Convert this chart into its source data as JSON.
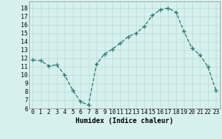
{
  "x": [
    0,
    1,
    2,
    3,
    4,
    5,
    6,
    7,
    8,
    9,
    10,
    11,
    12,
    13,
    14,
    15,
    16,
    17,
    18,
    19,
    20,
    21,
    22,
    23
  ],
  "y": [
    11.8,
    11.7,
    11.1,
    11.2,
    10.0,
    8.2,
    6.8,
    6.4,
    11.3,
    12.5,
    13.1,
    13.8,
    14.6,
    15.0,
    15.8,
    17.1,
    17.8,
    18.0,
    17.5,
    15.2,
    13.2,
    12.4,
    11.0,
    8.2
  ],
  "xlabel": "Humidex (Indice chaleur)",
  "xlim": [
    -0.5,
    23.5
  ],
  "ylim": [
    6,
    18.8
  ],
  "yticks": [
    6,
    7,
    8,
    9,
    10,
    11,
    12,
    13,
    14,
    15,
    16,
    17,
    18
  ],
  "xticks": [
    0,
    1,
    2,
    3,
    4,
    5,
    6,
    7,
    8,
    9,
    10,
    11,
    12,
    13,
    14,
    15,
    16,
    17,
    18,
    19,
    20,
    21,
    22,
    23
  ],
  "line_color": "#2e7d6e",
  "marker": "+",
  "marker_size": 4,
  "marker_linewidth": 1.0,
  "bg_color": "#d6f0ef",
  "grid_color": "#b8d8d4",
  "label_fontsize": 7,
  "tick_fontsize": 6,
  "linewidth": 1.0
}
